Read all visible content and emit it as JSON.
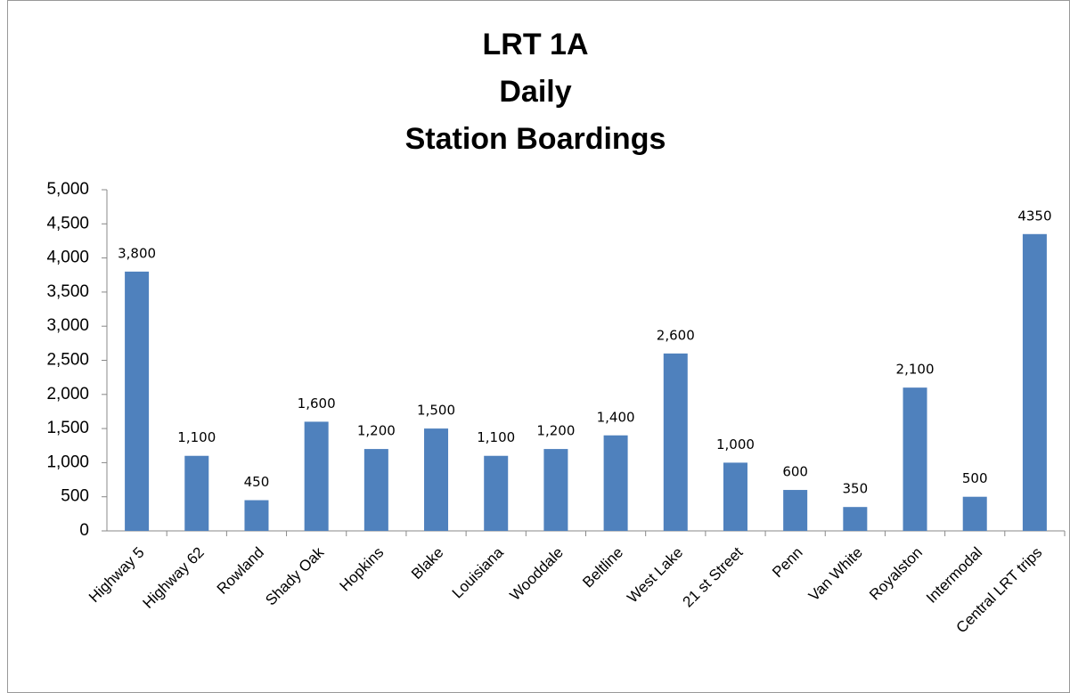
{
  "chart_data": {
    "type": "bar",
    "title": [
      "LRT 1A",
      "Daily",
      "Station Boardings"
    ],
    "categories": [
      "Highway 5",
      "Highway 62",
      "Rowland",
      "Shady Oak",
      "Hopkins",
      "Blake",
      "Louisiana",
      "Wooddale",
      "Beltline",
      "West Lake",
      "21 st Street",
      "Penn",
      "Van White",
      "Royalston",
      "Intermodal",
      "Central LRT trips"
    ],
    "values": [
      3800,
      1100,
      450,
      1600,
      1200,
      1500,
      1100,
      1200,
      1400,
      2600,
      1000,
      600,
      350,
      2100,
      500,
      4350
    ],
    "value_labels": [
      "3,800",
      "1,100",
      "450",
      "1,600",
      "1,200",
      "1,500",
      "1,100",
      "1,200",
      "1,400",
      "2,600",
      "1,000",
      "600",
      "350",
      "2,100",
      "500",
      "4350"
    ],
    "color": "#4f81bd",
    "ylim": [
      0,
      5000
    ],
    "yticks": [
      0,
      500,
      {
        "value": 1000,
        "label": "1,000"
      },
      {
        "value": 1500,
        "label": "1,500"
      },
      {
        "value": 2000,
        "label": "2,000"
      },
      {
        "value": 2500,
        "label": "2,500"
      },
      {
        "value": 3000,
        "label": "3,000"
      },
      {
        "value": 3500,
        "label": "3,500"
      },
      {
        "value": 4000,
        "label": "4,000"
      },
      {
        "value": 4500,
        "label": "4,500"
      },
      {
        "value": 5000,
        "label": "5,000"
      }
    ],
    "grid": false
  }
}
